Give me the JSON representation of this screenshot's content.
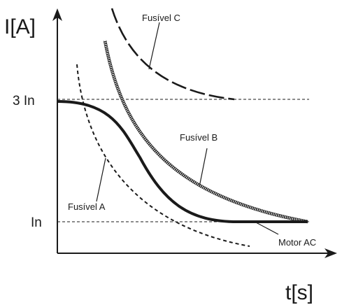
{
  "axes": {
    "y_label": "I[A]",
    "x_label": "t[s]",
    "y_ticks": [
      "3 In",
      "In"
    ]
  },
  "curves": {
    "fusivel_c": {
      "label": "Fusível C",
      "style": "long-dash"
    },
    "fusivel_b": {
      "label": "Fusível B",
      "style": "hatched"
    },
    "fusivel_a": {
      "label": "Fusível A",
      "style": "short-dash"
    },
    "motor_ac": {
      "label": "Motor AC",
      "style": "solid-bold"
    }
  },
  "colors": {
    "ink": "#1a1a1a",
    "background": "#ffffff"
  }
}
